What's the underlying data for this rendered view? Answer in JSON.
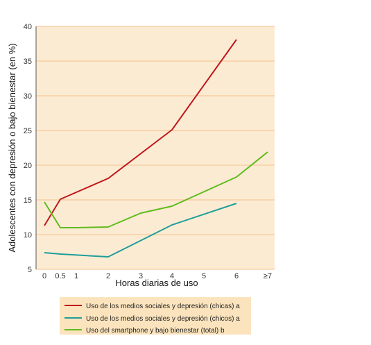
{
  "chart_data": {
    "type": "line",
    "xlabel": "Horas diarias de uso",
    "ylabel": "Adolescentes con depresión o bajo bienestar (en %)",
    "ylim": [
      5,
      40
    ],
    "yticks": [
      5,
      10,
      15,
      20,
      25,
      30,
      35,
      40
    ],
    "xticks": [
      "0",
      "0.5",
      "1",
      "2",
      "3",
      "4",
      "5",
      "6",
      "≥7"
    ],
    "grid": true,
    "legend_position": "bottom",
    "colors": {
      "plot_background": "#fcebd3",
      "gridline": "#f5c08a",
      "legend_background": "#fbe4bd"
    },
    "series": [
      {
        "name": "Uso de los medios sociales y depresión (chicas) a",
        "color": "#c0161c",
        "points": [
          [
            "0",
            11.3
          ],
          [
            "0.5",
            15.1
          ],
          [
            "2",
            18.1
          ],
          [
            "4",
            25.1
          ],
          [
            "6",
            38.1
          ]
        ]
      },
      {
        "name": "Uso de los medios sociales y depresión (chicos) a",
        "color": "#1f9e98",
        "points": [
          [
            "0",
            7.4
          ],
          [
            "0.5",
            7.2
          ],
          [
            "2",
            6.8
          ],
          [
            "4",
            11.4
          ],
          [
            "6",
            14.5
          ]
        ]
      },
      {
        "name": "Uso del smartphone y bajo bienestar (total) b",
        "color": "#5fbb1c",
        "points": [
          [
            "0",
            14.7
          ],
          [
            "0.5",
            11.0
          ],
          [
            "1",
            11.0
          ],
          [
            "2",
            11.1
          ],
          [
            "3",
            13.1
          ],
          [
            "4",
            14.1
          ],
          [
            "6",
            18.3
          ],
          [
            "≥7",
            21.9
          ]
        ]
      }
    ]
  }
}
